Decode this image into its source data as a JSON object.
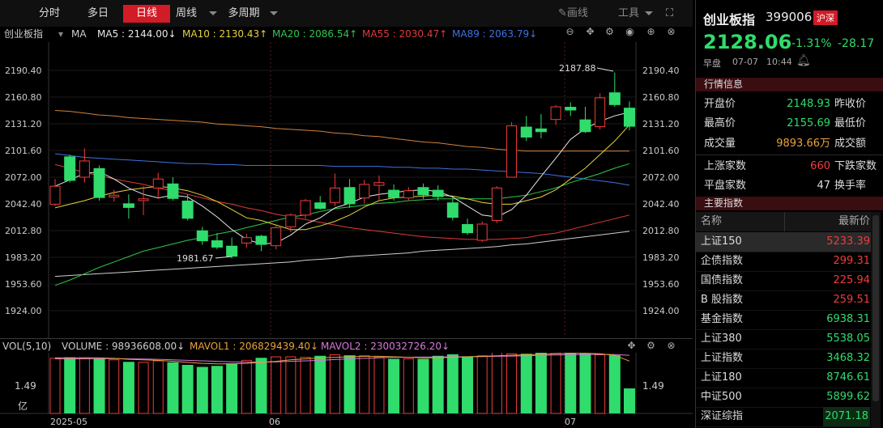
{
  "toolbar": {
    "tabs": [
      {
        "label": "分时",
        "active": false
      },
      {
        "label": "多日",
        "active": false
      },
      {
        "label": "日线",
        "active": true
      },
      {
        "label": "周线",
        "active": false
      },
      {
        "label": "多周期",
        "active": false
      }
    ],
    "draw_label": "画线",
    "tools_label": "工具"
  },
  "ma_bar": {
    "name": "创业板指",
    "ma_label": "MA",
    "ma5": "MA5 : 2144.00↓",
    "ma10": "MA10 : 2130.43↑",
    "ma20": "MA20 : 2086.54↑",
    "ma55": "MA55 : 2030.47↑",
    "ma89": "MA89 : 2063.79↓",
    "colors": {
      "ma5": "#e8e8e8",
      "ma10": "#e6d23c",
      "ma20": "#2ec84a",
      "ma55": "#e03a3a",
      "ma89": "#3f72e0"
    }
  },
  "price_axis": {
    "ticks": [
      "2190.40",
      "2160.80",
      "2131.20",
      "2101.60",
      "2072.00",
      "2042.40",
      "2012.80",
      "1983.20",
      "1953.60",
      "1924.00"
    ]
  },
  "annotations": {
    "high": "2187.88",
    "low": "1981.67"
  },
  "vol_bar": {
    "label": "VOL(5,10)",
    "volume": "VOLUME : 98936608.00↓",
    "mavol1": "MAVOL1 : 206829439.40↓",
    "mavol2": "MAVOL2 : 230032726.20↓",
    "colors": {
      "mavol1": "#e8a23c",
      "mavol2": "#d77ad7"
    }
  },
  "vol_axis": {
    "value": "1.49",
    "unit": "亿"
  },
  "date_axis": [
    "2025-05",
    "06",
    "07"
  ],
  "chart_data": {
    "type": "candlestick",
    "ylim": [
      1924.0,
      2190.4
    ],
    "candles": [
      {
        "o": 2062,
        "h": 2070,
        "l": 2040,
        "c": 2042,
        "dir": "up"
      },
      {
        "o": 2095,
        "h": 2097,
        "l": 2066,
        "c": 2068,
        "dir": "down"
      },
      {
        "o": 2090,
        "h": 2104,
        "l": 2066,
        "c": 2072,
        "dir": "up"
      },
      {
        "o": 2082,
        "h": 2085,
        "l": 2046,
        "c": 2049,
        "dir": "down"
      },
      {
        "o": 2052,
        "h": 2058,
        "l": 2045,
        "c": 2050,
        "dir": "up"
      },
      {
        "o": 2043,
        "h": 2053,
        "l": 2026,
        "c": 2038,
        "dir": "down"
      },
      {
        "o": 2046,
        "h": 2062,
        "l": 2030,
        "c": 2048,
        "dir": "up"
      },
      {
        "o": 2060,
        "h": 2077,
        "l": 2048,
        "c": 2070,
        "dir": "up"
      },
      {
        "o": 2065,
        "h": 2072,
        "l": 2046,
        "c": 2048,
        "dir": "down"
      },
      {
        "o": 2046,
        "h": 2053,
        "l": 2024,
        "c": 2026,
        "dir": "down"
      },
      {
        "o": 2013,
        "h": 2017,
        "l": 1997,
        "c": 2001,
        "dir": "down"
      },
      {
        "o": 2002,
        "h": 2010,
        "l": 1992,
        "c": 1994,
        "dir": "down"
      },
      {
        "o": 1996,
        "h": 2005,
        "l": 1982,
        "c": 1984,
        "dir": "down"
      },
      {
        "o": 1999,
        "h": 2009,
        "l": 1994,
        "c": 2005,
        "dir": "up"
      },
      {
        "o": 1997,
        "h": 2008,
        "l": 1990,
        "c": 2007,
        "dir": "down"
      },
      {
        "o": 1996,
        "h": 2018,
        "l": 1992,
        "c": 2016,
        "dir": "up"
      },
      {
        "o": 2017,
        "h": 2032,
        "l": 2011,
        "c": 2030,
        "dir": "up"
      },
      {
        "o": 2030,
        "h": 2048,
        "l": 2026,
        "c": 2046,
        "dir": "up"
      },
      {
        "o": 2044,
        "h": 2051,
        "l": 2036,
        "c": 2037,
        "dir": "down"
      },
      {
        "o": 2044,
        "h": 2076,
        "l": 2040,
        "c": 2060,
        "dir": "up"
      },
      {
        "o": 2061,
        "h": 2070,
        "l": 2038,
        "c": 2042,
        "dir": "down"
      },
      {
        "o": 2049,
        "h": 2069,
        "l": 2043,
        "c": 2064,
        "dir": "up"
      },
      {
        "o": 2066,
        "h": 2074,
        "l": 2046,
        "c": 2063,
        "dir": "up"
      },
      {
        "o": 2058,
        "h": 2064,
        "l": 2046,
        "c": 2049,
        "dir": "down"
      },
      {
        "o": 2049,
        "h": 2061,
        "l": 2046,
        "c": 2057,
        "dir": "up"
      },
      {
        "o": 2061,
        "h": 2065,
        "l": 2048,
        "c": 2052,
        "dir": "down"
      },
      {
        "o": 2058,
        "h": 2063,
        "l": 2046,
        "c": 2050,
        "dir": "down"
      },
      {
        "o": 2044,
        "h": 2049,
        "l": 2024,
        "c": 2027,
        "dir": "down"
      },
      {
        "o": 2020,
        "h": 2026,
        "l": 2008,
        "c": 2010,
        "dir": "down"
      },
      {
        "o": 2002,
        "h": 2023,
        "l": 2000,
        "c": 2020,
        "dir": "up"
      },
      {
        "o": 2024,
        "h": 2062,
        "l": 2021,
        "c": 2060,
        "dir": "up"
      },
      {
        "o": 2072,
        "h": 2133,
        "l": 2072,
        "c": 2129,
        "dir": "up"
      },
      {
        "o": 2128,
        "h": 2140,
        "l": 2112,
        "c": 2116,
        "dir": "down"
      },
      {
        "o": 2122,
        "h": 2142,
        "l": 2115,
        "c": 2126,
        "dir": "down"
      },
      {
        "o": 2136,
        "h": 2152,
        "l": 2130,
        "c": 2150,
        "dir": "up"
      },
      {
        "o": 2146,
        "h": 2155,
        "l": 2140,
        "c": 2150,
        "dir": "down"
      },
      {
        "o": 2136,
        "h": 2150,
        "l": 2121,
        "c": 2122,
        "dir": "down"
      },
      {
        "o": 2128,
        "h": 2165,
        "l": 2125,
        "c": 2160,
        "dir": "up"
      },
      {
        "o": 2166,
        "h": 2188,
        "l": 2150,
        "c": 2152,
        "dir": "down"
      },
      {
        "o": 2149,
        "h": 2156,
        "l": 2124,
        "c": 2128,
        "dir": "down"
      }
    ],
    "ma5": [
      2062,
      2069,
      2076,
      2078,
      2070,
      2060,
      2053,
      2049,
      2052,
      2050,
      2040,
      2028,
      2014,
      2003,
      1998,
      1999,
      2008,
      2020,
      2027,
      2038,
      2043,
      2050,
      2053,
      2055,
      2057,
      2058,
      2056,
      2050,
      2040,
      2030,
      2028,
      2036,
      2052,
      2073,
      2093,
      2114,
      2126,
      2134,
      2140,
      2144
    ],
    "ma10": [
      2038,
      2042,
      2046,
      2051,
      2055,
      2058,
      2060,
      2062,
      2060,
      2057,
      2052,
      2045,
      2036,
      2027,
      2024,
      2019,
      2014,
      2014,
      2018,
      2023,
      2030,
      2039,
      2046,
      2049,
      2050,
      2051,
      2052,
      2051,
      2048,
      2044,
      2042,
      2042,
      2046,
      2050,
      2058,
      2070,
      2082,
      2097,
      2112,
      2130
    ],
    "ma20": [
      1952,
      1958,
      1965,
      1972,
      1978,
      1984,
      1990,
      1994,
      1998,
      2002,
      2005,
      2009,
      2012,
      2016,
      2020,
      2024,
      2028,
      2030,
      2034,
      2037,
      2039,
      2041,
      2043,
      2044,
      2046,
      2047,
      2048,
      2048,
      2048,
      2048,
      2048,
      2050,
      2052,
      2056,
      2060,
      2066,
      2071,
      2076,
      2082,
      2087
    ],
    "ma55": [
      2086,
      2082,
      2077,
      2074,
      2070,
      2067,
      2064,
      2060,
      2057,
      2053,
      2049,
      2045,
      2042,
      2038,
      2035,
      2031,
      2028,
      2025,
      2022,
      2019,
      2016,
      2014,
      2012,
      2010,
      2008,
      2006,
      2005,
      2004,
      2003,
      2003,
      2003,
      2004,
      2005,
      2008,
      2010,
      2014,
      2018,
      2022,
      2026,
      2030
    ],
    "ma89": [
      1962,
      1963,
      1964,
      1965,
      1966,
      1967,
      1968,
      1969,
      1970,
      1971,
      1972,
      1973,
      1974,
      1975,
      1976,
      1977,
      1978,
      1980,
      1981,
      1982,
      1984,
      1985,
      1986,
      1987,
      1988,
      1990,
      1991,
      1992,
      1993,
      1994,
      1995,
      1997,
      1998,
      2000,
      2002,
      2004,
      2006,
      2008,
      2010,
      2012
    ],
    "ma_orange": [
      2146,
      2145,
      2143,
      2141,
      2140,
      2138,
      2137,
      2136,
      2135,
      2134,
      2133,
      2131,
      2130,
      2129,
      2128,
      2126,
      2125,
      2124,
      2123,
      2121,
      2120,
      2118,
      2117,
      2115,
      2113,
      2111,
      2110,
      2108,
      2106,
      2105,
      2103,
      2102,
      2101,
      2101,
      2101,
      2101,
      2101,
      2101,
      2101,
      2101
    ],
    "ma_blue": [
      2098,
      2096,
      2094,
      2093,
      2092,
      2091,
      2090,
      2089,
      2088,
      2087,
      2087,
      2086,
      2086,
      2085,
      2085,
      2085,
      2085,
      2085,
      2085,
      2084,
      2084,
      2084,
      2084,
      2083,
      2083,
      2082,
      2082,
      2081,
      2081,
      2080,
      2079,
      2078,
      2077,
      2076,
      2074,
      2072,
      2070,
      2068,
      2066,
      2063
    ],
    "volume_ylim": [
      0,
      2.4
    ],
    "volume": [
      2.18,
      2.22,
      2.2,
      2.18,
      2.12,
      2.04,
      2.02,
      2.08,
      2.02,
      1.92,
      1.84,
      1.88,
      1.98,
      2.1,
      2.2,
      2.24,
      2.24,
      2.22,
      2.28,
      2.32,
      2.3,
      2.28,
      2.22,
      2.16,
      2.16,
      2.16,
      2.28,
      2.34,
      2.26,
      2.28,
      2.42,
      2.36,
      2.36,
      2.46,
      2.4,
      2.4,
      2.38,
      2.32,
      2.3,
      0.99
    ],
    "mavol1": [
      2.2,
      2.2,
      2.2,
      2.2,
      2.18,
      2.14,
      2.12,
      2.1,
      2.06,
      2.02,
      1.98,
      1.96,
      1.96,
      1.98,
      2.02,
      2.06,
      2.12,
      2.16,
      2.2,
      2.22,
      2.24,
      2.26,
      2.26,
      2.24,
      2.22,
      2.2,
      2.2,
      2.22,
      2.24,
      2.26,
      2.28,
      2.3,
      2.32,
      2.34,
      2.36,
      2.38,
      2.38,
      2.36,
      2.3,
      2.07
    ],
    "mavol2": [
      2.16,
      2.16,
      2.16,
      2.17,
      2.17,
      2.16,
      2.15,
      2.14,
      2.12,
      2.1,
      2.08,
      2.06,
      2.04,
      2.03,
      2.03,
      2.04,
      2.06,
      2.08,
      2.1,
      2.13,
      2.16,
      2.18,
      2.2,
      2.22,
      2.22,
      2.23,
      2.23,
      2.24,
      2.24,
      2.25,
      2.26,
      2.27,
      2.28,
      2.3,
      2.31,
      2.32,
      2.33,
      2.34,
      2.33,
      2.3
    ]
  },
  "quote": {
    "name": "创业板指",
    "code": "399006",
    "market_badge": "沪深",
    "price": "2128.06",
    "change_pct": "-1.31%",
    "change": "-28.17",
    "session": "早盘",
    "date": "07-07",
    "time": "10:44"
  },
  "market_info": {
    "title": "行情信息",
    "rows": [
      {
        "l1": "开盘价",
        "v1": "2148.93",
        "c1": "dn",
        "l2": "昨收价"
      },
      {
        "l1": "最高价",
        "v1": "2155.69",
        "c1": "dn",
        "l2": "最低价"
      },
      {
        "l1": "成交量",
        "v1": "9893.66万",
        "c1": "orange",
        "l2": "成交额"
      }
    ],
    "breadth": [
      {
        "l1": "上涨家数",
        "v1": "660",
        "c1": "up",
        "l2": "下跌家数"
      },
      {
        "l1": "平盘家数",
        "v1": "47",
        "c1": "plain",
        "l2": "换手率"
      }
    ]
  },
  "indices": {
    "title": "主要指数",
    "col_name": "名称",
    "col_price": "最新价",
    "rows": [
      {
        "name": "上证150",
        "price": "5233.39",
        "dir": "up",
        "selected": true
      },
      {
        "name": "企债指数",
        "price": "299.31",
        "dir": "up"
      },
      {
        "name": "国债指数",
        "price": "225.94",
        "dir": "up"
      },
      {
        "name": "B 股指数",
        "price": "259.51",
        "dir": "up"
      },
      {
        "name": "基金指数",
        "price": "6938.31",
        "dir": "dn"
      },
      {
        "name": "上证380",
        "price": "5538.05",
        "dir": "dn"
      },
      {
        "name": "上证指数",
        "price": "3468.32",
        "dir": "dn"
      },
      {
        "name": "上证180",
        "price": "8746.61",
        "dir": "dn"
      },
      {
        "name": "中证500",
        "price": "5899.62",
        "dir": "dn"
      },
      {
        "name": "深证综指",
        "price": "2071.18",
        "dir": "dn"
      }
    ]
  }
}
